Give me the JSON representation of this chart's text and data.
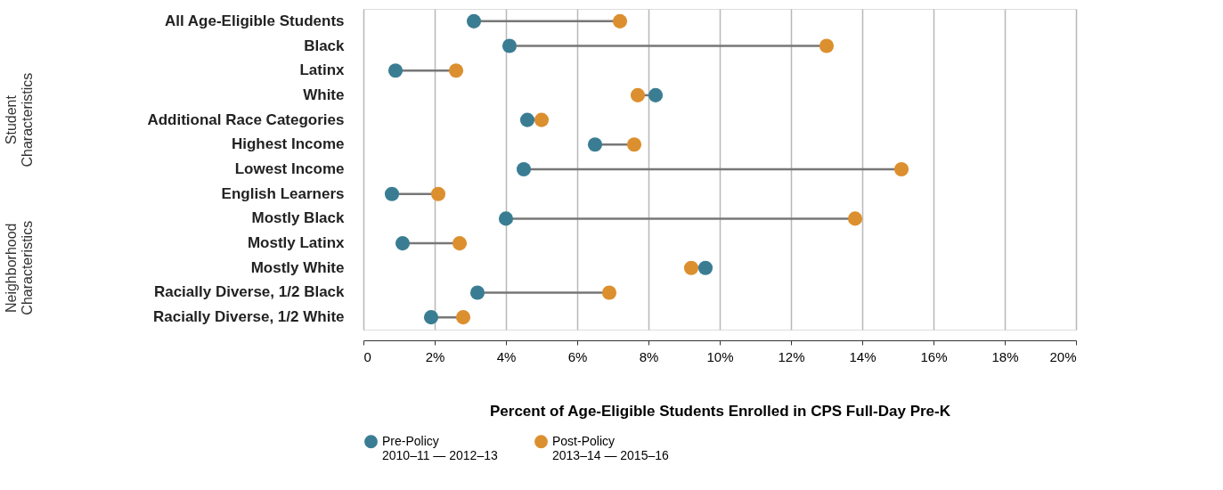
{
  "chart_data": {
    "type": "scatter",
    "orientation": "horizontal",
    "categories": [
      "All Age-Eligible Students",
      "Black",
      "Latinx",
      "White",
      "Additional Race Categories",
      "Highest Income",
      "Lowest Income",
      "English Learners",
      "Mostly Black",
      "Mostly Latinx",
      "Mostly White",
      "Racially Diverse, 1/2 Black",
      "Racially Diverse, 1/2 White"
    ],
    "series": [
      {
        "name": "Pre-Policy\n2010–11 — 2012–13",
        "color": "#3a7d93",
        "values": [
          3.1,
          4.1,
          0.9,
          8.2,
          4.6,
          6.5,
          4.5,
          0.8,
          4.0,
          1.1,
          9.6,
          3.2,
          1.9
        ]
      },
      {
        "name": "Post-Policy\n2013–14 — 2015–16",
        "color": "#dc8f2e",
        "values": [
          7.2,
          13.0,
          2.6,
          7.7,
          5.0,
          7.6,
          15.1,
          2.1,
          13.8,
          2.7,
          9.2,
          6.9,
          2.8
        ]
      }
    ],
    "xlim": [
      0,
      20
    ],
    "xticks": [
      0,
      {
        "value": 2,
        "label": "2%"
      },
      {
        "value": 4,
        "label": "4%"
      },
      {
        "value": 6,
        "label": "6%"
      },
      {
        "value": 8,
        "label": "8%"
      },
      {
        "value": 10,
        "label": "10%"
      },
      {
        "value": 12,
        "label": "12%"
      },
      {
        "value": 14,
        "label": "14%"
      },
      {
        "value": 16,
        "label": "16%"
      },
      {
        "value": 18,
        "label": "18%"
      },
      {
        "value": 20,
        "label": "20%"
      }
    ],
    "xlabel": "Percent of Age-Eligible Students Enrolled in CPS Full-Day Pre-K",
    "annotations": [
      "Student\nCharacteristics",
      "Neighborhood\nCharacteristics"
    ],
    "grid": "x",
    "legend": "bottom",
    "marker": "circle"
  }
}
